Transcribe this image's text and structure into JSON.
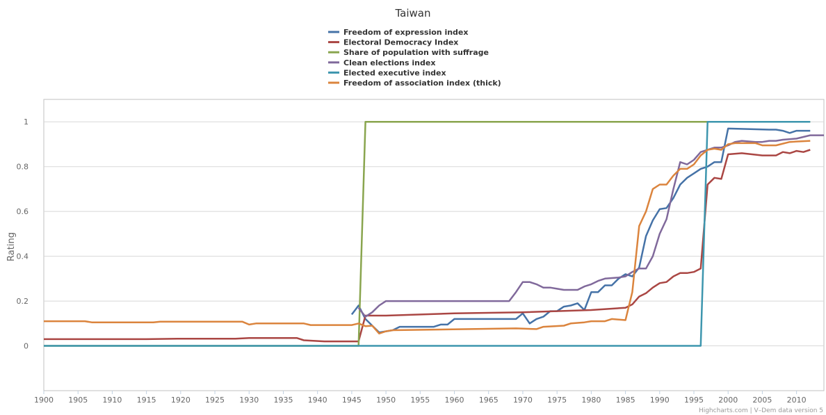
{
  "chart_data": {
    "type": "line",
    "title": "Taiwan",
    "y_label": "Rating",
    "credits": "Highcharts.com | V–Dem data version 5",
    "xlim": [
      1900,
      2014
    ],
    "ylim": [
      -0.2,
      1.1
    ],
    "xticks": [
      1900,
      1905,
      1910,
      1915,
      1920,
      1925,
      1930,
      1935,
      1940,
      1945,
      1950,
      1955,
      1960,
      1965,
      1970,
      1975,
      1980,
      1985,
      1990,
      1995,
      2000,
      2005,
      2010
    ],
    "yticks": [
      0,
      0.2,
      0.4,
      0.6,
      0.8,
      1
    ],
    "grid": true,
    "legend": "top",
    "series": [
      {
        "name": "Freedom of expression index",
        "color": "#4572a7",
        "x": [
          1945,
          1946,
          1947,
          1948,
          1949,
          1950,
          1951,
          1952,
          1957,
          1958,
          1959,
          1960,
          1969,
          1970,
          1971,
          1972,
          1973,
          1974,
          1975,
          1976,
          1977,
          1978,
          1979,
          1980,
          1981,
          1982,
          1983,
          1984,
          1985,
          1986,
          1987,
          1988,
          1989,
          1990,
          1991,
          1992,
          1993,
          1994,
          1995,
          1996,
          1997,
          1998,
          1999,
          2000,
          2006,
          2007,
          2008,
          2009,
          2010,
          2012
        ],
        "values": [
          0.14,
          0.18,
          0.12,
          0.09,
          0.06,
          0.065,
          0.07,
          0.085,
          0.085,
          0.095,
          0.095,
          0.12,
          0.12,
          0.145,
          0.1,
          0.12,
          0.13,
          0.155,
          0.155,
          0.175,
          0.18,
          0.19,
          0.16,
          0.24,
          0.24,
          0.27,
          0.27,
          0.3,
          0.32,
          0.31,
          0.35,
          0.49,
          0.56,
          0.61,
          0.615,
          0.66,
          0.72,
          0.75,
          0.77,
          0.79,
          0.8,
          0.82,
          0.82,
          0.97,
          0.965,
          0.965,
          0.96,
          0.95,
          0.96,
          0.96
        ]
      },
      {
        "name": "Electoral Democracy Index",
        "color": "#aa4643",
        "x": [
          1900,
          1915,
          1920,
          1928,
          1930,
          1937,
          1938,
          1941,
          1946,
          1947,
          1950,
          1960,
          1970,
          1980,
          1985,
          1986,
          1987,
          1988,
          1989,
          1990,
          1991,
          1992,
          1993,
          1994,
          1995,
          1996,
          1997,
          1998,
          1999,
          2000,
          2002,
          2005,
          2007,
          2008,
          2009,
          2010,
          2011,
          2012
        ],
        "values": [
          0.03,
          0.03,
          0.032,
          0.032,
          0.035,
          0.035,
          0.025,
          0.02,
          0.02,
          0.135,
          0.135,
          0.145,
          0.15,
          0.16,
          0.17,
          0.185,
          0.22,
          0.235,
          0.26,
          0.28,
          0.285,
          0.31,
          0.325,
          0.325,
          0.33,
          0.345,
          0.72,
          0.75,
          0.745,
          0.855,
          0.86,
          0.85,
          0.85,
          0.865,
          0.86,
          0.87,
          0.865,
          0.875
        ]
      },
      {
        "name": "Share of population with suffrage",
        "color": "#89a54e",
        "x": [
          1900,
          1946,
          1947,
          2012
        ],
        "values": [
          0,
          0,
          1,
          1
        ]
      },
      {
        "name": "Clean elections index",
        "color": "#80699b",
        "x": [
          1946,
          1947,
          1948,
          1949,
          1950,
          1968,
          1969,
          1970,
          1971,
          1972,
          1973,
          1974,
          1975,
          1976,
          1978,
          1979,
          1980,
          1981,
          1982,
          1984,
          1985,
          1986,
          1987,
          1988,
          1989,
          1990,
          1991,
          1992,
          1993,
          1994,
          1995,
          1996,
          1997,
          1998,
          1999,
          2000,
          2001,
          2002,
          2004,
          2005,
          2006,
          2007,
          2008,
          2010,
          2012,
          2014
        ],
        "values": [
          0.17,
          0.13,
          0.15,
          0.18,
          0.2,
          0.2,
          0.24,
          0.285,
          0.285,
          0.275,
          0.26,
          0.26,
          0.255,
          0.25,
          0.25,
          0.265,
          0.275,
          0.29,
          0.3,
          0.305,
          0.31,
          0.33,
          0.345,
          0.345,
          0.4,
          0.5,
          0.565,
          0.7,
          0.82,
          0.81,
          0.83,
          0.865,
          0.875,
          0.885,
          0.885,
          0.895,
          0.91,
          0.915,
          0.91,
          0.91,
          0.915,
          0.915,
          0.92,
          0.925,
          0.94,
          0.94
        ]
      },
      {
        "name": "Elected executive index",
        "color": "#3d96ae",
        "x": [
          1900,
          1996,
          1997,
          2012
        ],
        "values": [
          0,
          0,
          1,
          1
        ]
      },
      {
        "name": "Freedom of association index (thick)",
        "color": "#db843d",
        "x": [
          1900,
          1906,
          1907,
          1916,
          1917,
          1929,
          1930,
          1931,
          1938,
          1939,
          1945,
          1946,
          1947,
          1948,
          1949,
          1950,
          1951,
          1969,
          1972,
          1973,
          1976,
          1977,
          1979,
          1980,
          1982,
          1983,
          1985,
          1986,
          1987,
          1988,
          1989,
          1990,
          1991,
          1992,
          1993,
          1994,
          1995,
          1996,
          1997,
          1998,
          1999,
          2000,
          2001,
          2004,
          2005,
          2007,
          2009,
          2012
        ],
        "values": [
          0.11,
          0.11,
          0.105,
          0.105,
          0.108,
          0.108,
          0.095,
          0.1,
          0.1,
          0.093,
          0.093,
          0.1,
          0.088,
          0.09,
          0.055,
          0.065,
          0.07,
          0.078,
          0.075,
          0.085,
          0.09,
          0.1,
          0.105,
          0.11,
          0.11,
          0.12,
          0.115,
          0.24,
          0.535,
          0.6,
          0.7,
          0.72,
          0.72,
          0.76,
          0.79,
          0.79,
          0.81,
          0.85,
          0.875,
          0.88,
          0.875,
          0.9,
          0.905,
          0.905,
          0.895,
          0.895,
          0.91,
          0.915
        ]
      }
    ]
  }
}
